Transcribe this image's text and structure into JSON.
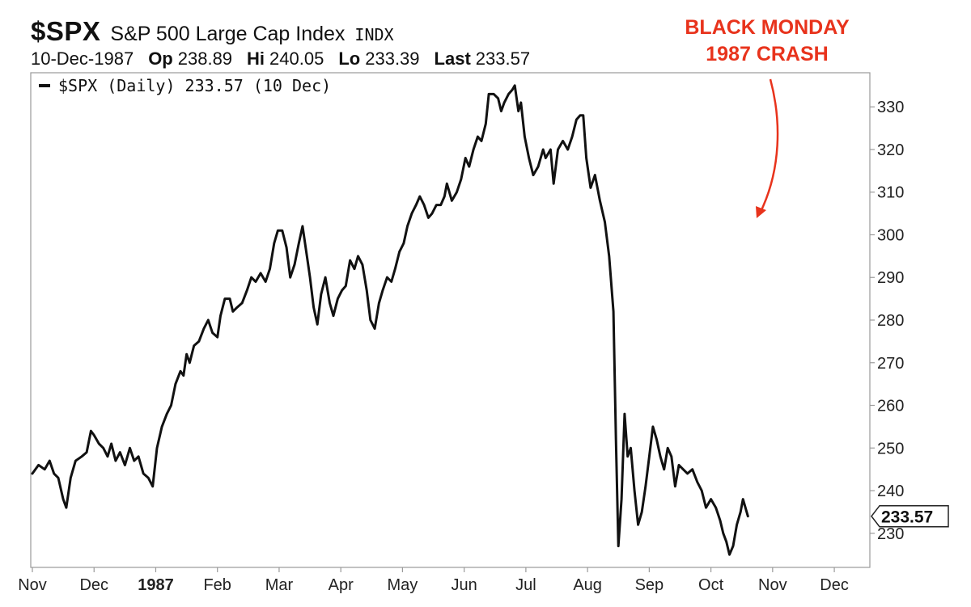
{
  "header": {
    "symbol": "$SPX",
    "name": "S&P 500 Large Cap Index",
    "exchange": "INDX",
    "date": "10-Dec-1987",
    "op_label": "Op",
    "op_value": "238.89",
    "hi_label": "Hi",
    "hi_value": "240.05",
    "lo_label": "Lo",
    "lo_value": "233.39",
    "last_label": "Last",
    "last_value": "233.57"
  },
  "legend": {
    "label": "$SPX (Daily) 233.57 (10 Dec)"
  },
  "annotation": {
    "line1": "BLACK MONDAY",
    "line2": "1987 CRASH",
    "color": "#e8331c"
  },
  "colors": {
    "line": "#111111",
    "axis": "#9a9a9a",
    "annotation": "#e8331c"
  },
  "chart_data": {
    "type": "line",
    "title": "",
    "xlabel": "",
    "ylabel": "",
    "ylim": [
      222,
      338
    ],
    "y_ticks": [
      230,
      240,
      250,
      260,
      270,
      280,
      290,
      300,
      310,
      320,
      330
    ],
    "y_axis_side": "right",
    "grid": false,
    "legend_position": "top-left",
    "last_value_label": "233.57",
    "x_ticks": [
      {
        "label": "Nov",
        "x": 0
      },
      {
        "label": "Dec",
        "x": 1
      },
      {
        "label": "1987",
        "x": 2,
        "bold": true
      },
      {
        "label": "Feb",
        "x": 3
      },
      {
        "label": "Mar",
        "x": 4
      },
      {
        "label": "Apr",
        "x": 5
      },
      {
        "label": "May",
        "x": 6
      },
      {
        "label": "Jun",
        "x": 7
      },
      {
        "label": "Jul",
        "x": 8
      },
      {
        "label": "Aug",
        "x": 9
      },
      {
        "label": "Sep",
        "x": 10
      },
      {
        "label": "Oct",
        "x": 11
      },
      {
        "label": "Nov",
        "x": 12
      },
      {
        "label": "Dec",
        "x": 13
      }
    ],
    "x_range": [
      0,
      13.55
    ],
    "series": [
      {
        "name": "$SPX (Daily)",
        "points": [
          [
            0.0,
            244
          ],
          [
            0.1,
            246
          ],
          [
            0.2,
            245
          ],
          [
            0.28,
            247
          ],
          [
            0.35,
            244
          ],
          [
            0.42,
            243
          ],
          [
            0.5,
            238
          ],
          [
            0.55,
            236
          ],
          [
            0.62,
            243
          ],
          [
            0.7,
            247
          ],
          [
            0.8,
            248
          ],
          [
            0.88,
            249
          ],
          [
            0.95,
            254
          ],
          [
            1.0,
            253
          ],
          [
            1.08,
            251
          ],
          [
            1.15,
            250
          ],
          [
            1.22,
            248
          ],
          [
            1.28,
            251
          ],
          [
            1.35,
            247
          ],
          [
            1.42,
            249
          ],
          [
            1.5,
            246
          ],
          [
            1.58,
            250
          ],
          [
            1.65,
            247
          ],
          [
            1.72,
            248
          ],
          [
            1.8,
            244
          ],
          [
            1.88,
            243
          ],
          [
            1.95,
            241
          ],
          [
            2.02,
            250
          ],
          [
            2.1,
            255
          ],
          [
            2.18,
            258
          ],
          [
            2.25,
            260
          ],
          [
            2.32,
            265
          ],
          [
            2.4,
            268
          ],
          [
            2.45,
            267
          ],
          [
            2.5,
            272
          ],
          [
            2.55,
            270
          ],
          [
            2.62,
            274
          ],
          [
            2.7,
            275
          ],
          [
            2.78,
            278
          ],
          [
            2.85,
            280
          ],
          [
            2.92,
            277
          ],
          [
            3.0,
            276
          ],
          [
            3.05,
            281
          ],
          [
            3.12,
            285
          ],
          [
            3.2,
            285
          ],
          [
            3.25,
            282
          ],
          [
            3.32,
            283
          ],
          [
            3.4,
            284
          ],
          [
            3.48,
            287
          ],
          [
            3.55,
            290
          ],
          [
            3.62,
            289
          ],
          [
            3.7,
            291
          ],
          [
            3.78,
            289
          ],
          [
            3.85,
            292
          ],
          [
            3.92,
            298
          ],
          [
            3.98,
            301
          ],
          [
            4.05,
            301
          ],
          [
            4.12,
            297
          ],
          [
            4.18,
            290
          ],
          [
            4.25,
            293
          ],
          [
            4.32,
            298
          ],
          [
            4.38,
            302
          ],
          [
            4.45,
            295
          ],
          [
            4.5,
            290
          ],
          [
            4.56,
            283
          ],
          [
            4.62,
            279
          ],
          [
            4.68,
            286
          ],
          [
            4.75,
            290
          ],
          [
            4.82,
            284
          ],
          [
            4.88,
            281
          ],
          [
            4.95,
            285
          ],
          [
            5.02,
            287
          ],
          [
            5.08,
            288
          ],
          [
            5.15,
            294
          ],
          [
            5.22,
            292
          ],
          [
            5.28,
            295
          ],
          [
            5.35,
            293
          ],
          [
            5.42,
            287
          ],
          [
            5.48,
            280
          ],
          [
            5.55,
            278
          ],
          [
            5.62,
            284
          ],
          [
            5.68,
            287
          ],
          [
            5.75,
            290
          ],
          [
            5.82,
            289
          ],
          [
            5.88,
            292
          ],
          [
            5.95,
            296
          ],
          [
            6.02,
            298
          ],
          [
            6.08,
            302
          ],
          [
            6.15,
            305
          ],
          [
            6.22,
            307
          ],
          [
            6.28,
            309
          ],
          [
            6.35,
            307
          ],
          [
            6.42,
            304
          ],
          [
            6.48,
            305
          ],
          [
            6.55,
            307
          ],
          [
            6.62,
            307
          ],
          [
            6.68,
            309
          ],
          [
            6.72,
            312
          ],
          [
            6.8,
            308
          ],
          [
            6.88,
            310
          ],
          [
            6.95,
            313
          ],
          [
            7.02,
            318
          ],
          [
            7.08,
            316
          ],
          [
            7.15,
            320
          ],
          [
            7.22,
            323
          ],
          [
            7.28,
            322
          ],
          [
            7.35,
            326
          ],
          [
            7.4,
            333
          ],
          [
            7.48,
            333
          ],
          [
            7.55,
            332
          ],
          [
            7.6,
            329
          ],
          [
            7.65,
            331
          ],
          [
            7.72,
            333
          ],
          [
            7.78,
            334
          ],
          [
            7.82,
            335
          ],
          [
            7.88,
            329
          ],
          [
            7.92,
            331
          ],
          [
            7.98,
            323
          ],
          [
            8.05,
            318
          ],
          [
            8.12,
            314
          ],
          [
            8.2,
            316
          ],
          [
            8.28,
            320
          ],
          [
            8.32,
            318
          ],
          [
            8.4,
            320
          ],
          [
            8.45,
            312
          ],
          [
            8.52,
            320
          ],
          [
            8.6,
            322
          ],
          [
            8.68,
            320
          ],
          [
            8.75,
            323
          ],
          [
            8.82,
            327
          ],
          [
            8.88,
            328
          ],
          [
            8.93,
            328
          ],
          [
            8.98,
            318
          ],
          [
            9.05,
            311
          ],
          [
            9.12,
            314
          ],
          [
            9.2,
            308
          ],
          [
            9.28,
            303
          ],
          [
            9.35,
            295
          ],
          [
            9.42,
            282
          ],
          [
            9.46,
            252
          ],
          [
            9.5,
            227
          ],
          [
            9.55,
            238
          ],
          [
            9.6,
            258
          ],
          [
            9.65,
            248
          ],
          [
            9.7,
            250
          ],
          [
            9.76,
            240
          ],
          [
            9.82,
            232
          ],
          [
            9.88,
            235
          ],
          [
            9.94,
            241
          ],
          [
            10.0,
            248
          ],
          [
            10.06,
            255
          ],
          [
            10.12,
            252
          ],
          [
            10.18,
            248
          ],
          [
            10.24,
            245
          ],
          [
            10.3,
            250
          ],
          [
            10.36,
            248
          ],
          [
            10.42,
            241
          ],
          [
            10.48,
            246
          ],
          [
            10.55,
            245
          ],
          [
            10.62,
            244
          ],
          [
            10.7,
            245
          ],
          [
            10.78,
            242
          ],
          [
            10.85,
            240
          ],
          [
            10.92,
            236
          ],
          [
            11.0,
            238
          ],
          [
            11.08,
            236
          ],
          [
            11.15,
            233
          ],
          [
            11.2,
            230
          ],
          [
            11.25,
            228
          ],
          [
            11.3,
            225
          ],
          [
            11.36,
            227
          ],
          [
            11.42,
            232
          ],
          [
            11.48,
            235
          ],
          [
            11.52,
            238
          ],
          [
            11.6,
            234
          ]
        ]
      }
    ]
  }
}
